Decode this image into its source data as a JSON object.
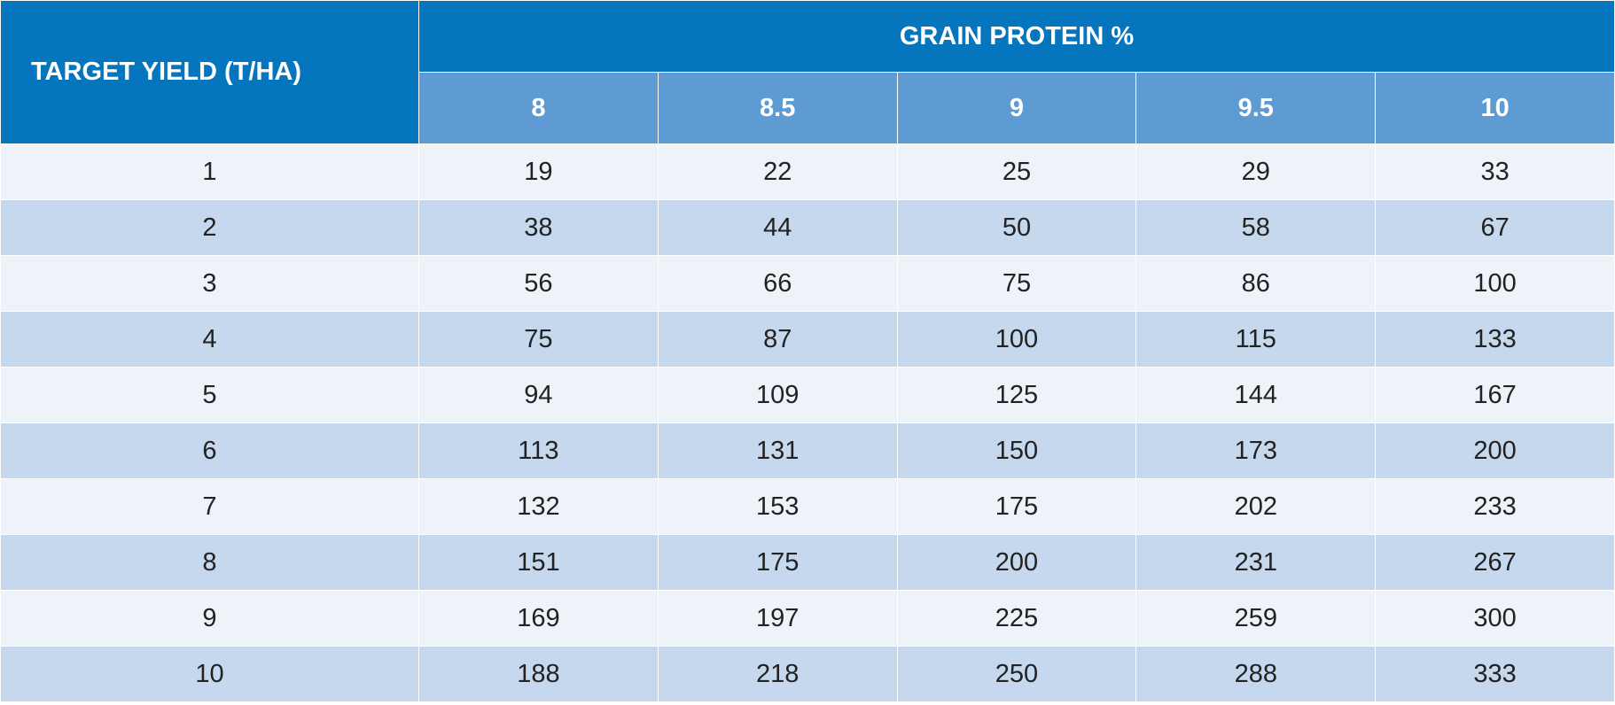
{
  "header": {
    "row_label": "TARGET YIELD (T/HA)",
    "group": "GRAIN PROTEIN %",
    "columns": [
      "8",
      "8.5",
      "9",
      "9.5",
      "10"
    ]
  },
  "table": {
    "rows": [
      [
        1,
        19,
        22,
        25,
        29,
        33
      ],
      [
        2,
        38,
        44,
        50,
        58,
        67
      ],
      [
        3,
        56,
        66,
        75,
        86,
        100
      ],
      [
        4,
        75,
        87,
        100,
        115,
        133
      ],
      [
        5,
        94,
        109,
        125,
        144,
        167
      ],
      [
        6,
        113,
        131,
        150,
        173,
        200
      ],
      [
        7,
        132,
        153,
        175,
        202,
        233
      ],
      [
        8,
        151,
        175,
        200,
        231,
        267
      ],
      [
        9,
        169,
        197,
        225,
        259,
        300
      ],
      [
        10,
        188,
        218,
        250,
        288,
        333
      ]
    ]
  }
}
